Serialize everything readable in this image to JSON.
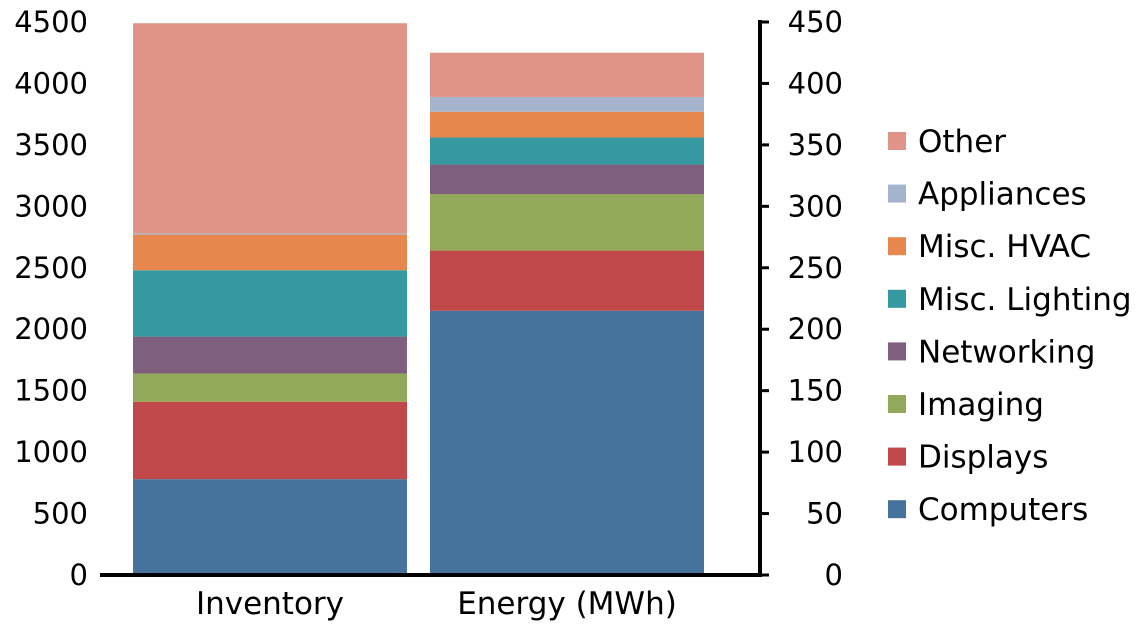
{
  "chart_data": {
    "type": "bar",
    "stacked": true,
    "categories": [
      "Inventory",
      "Energy (MWh)"
    ],
    "left_axis": {
      "ylim": [
        0,
        4500
      ],
      "ticks": [
        "0",
        "500",
        "1000",
        "1500",
        "2000",
        "2500",
        "3000",
        "3500",
        "4000",
        "4500"
      ],
      "applies_to": "Inventory"
    },
    "right_axis": {
      "ylim": [
        0,
        450
      ],
      "ticks": [
        "0",
        "50",
        "100",
        "150",
        "200",
        "250",
        "300",
        "350",
        "400",
        "450"
      ],
      "applies_to": "Energy (MWh)"
    },
    "series": [
      {
        "name": "Computers",
        "color": "#45739B",
        "values": [
          780,
          215
        ]
      },
      {
        "name": "Displays",
        "color": "#C0474A",
        "values": [
          630,
          49
        ]
      },
      {
        "name": "Imaging",
        "color": "#92A85A",
        "values": [
          230,
          46
        ]
      },
      {
        "name": "Networking",
        "color": "#7E5F7E",
        "values": [
          300,
          24
        ]
      },
      {
        "name": "Misc. Lighting",
        "color": "#3499A0",
        "values": [
          540,
          22
        ]
      },
      {
        "name": "Misc. HVAC",
        "color": "#E6884D",
        "values": [
          290,
          21
        ]
      },
      {
        "name": "Appliances",
        "color": "#A4B4CC",
        "values": [
          10,
          12
        ]
      },
      {
        "name": "Other",
        "color": "#E09487",
        "values": [
          1710,
          36
        ]
      }
    ],
    "legend_position": "right",
    "legend_order": [
      "Other",
      "Appliances",
      "Misc. HVAC",
      "Misc. Lighting",
      "Networking",
      "Imaging",
      "Displays",
      "Computers"
    ],
    "grid": false
  }
}
